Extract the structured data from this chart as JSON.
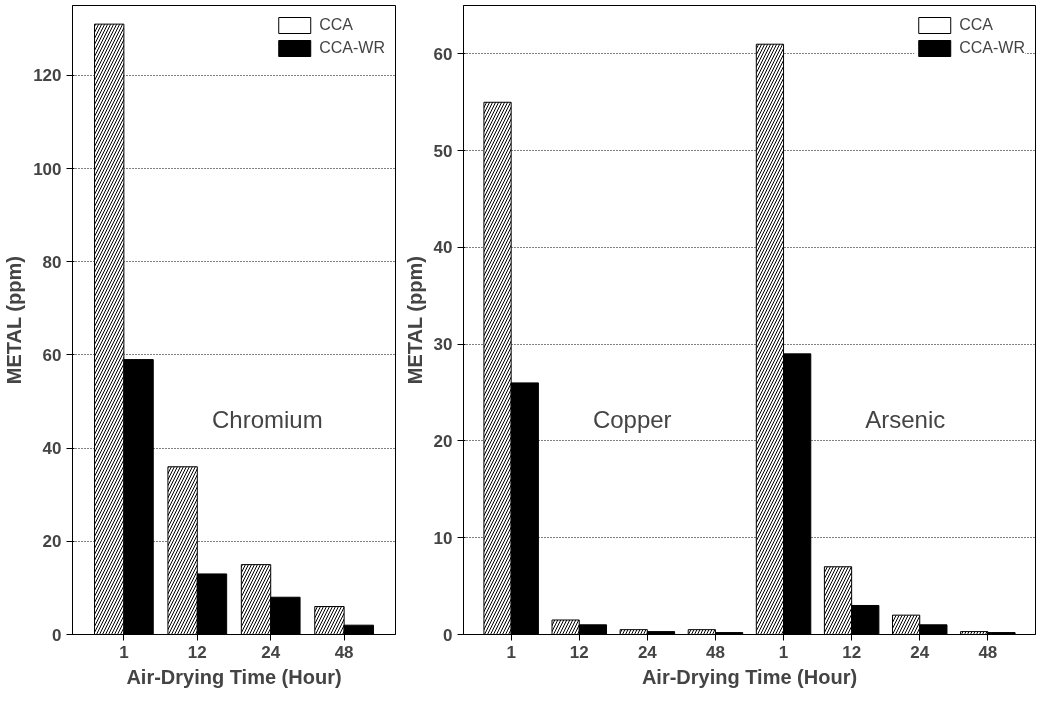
{
  "chart_data": [
    {
      "type": "bar",
      "xlabel": "Air-Drying Time (Hour)",
      "ylabel": "METAL (ppm)",
      "categories": [
        "1",
        "12",
        "24",
        "48"
      ],
      "series": [
        {
          "name": "CCA",
          "color": "#ffffff",
          "values": [
            131,
            36,
            15,
            6
          ]
        },
        {
          "name": "CCA-WR",
          "color": "#000000",
          "values": [
            59,
            13,
            8,
            2
          ]
        }
      ],
      "ylim": [
        0,
        135
      ],
      "yticks": [
        0,
        20,
        40,
        60,
        80,
        100,
        120
      ],
      "grid": "y",
      "legend": "top right",
      "annotations": [
        "Chromium"
      ]
    },
    {
      "type": "bar",
      "xlabel": "Air-Drying Time (Hour)",
      "ylabel": "METAL (ppm)",
      "categories": [
        "1",
        "12",
        "24",
        "48",
        "1",
        "12",
        "24",
        "48"
      ],
      "series": [
        {
          "name": "CCA",
          "color": "#ffffff",
          "values": [
            55,
            1.5,
            0.5,
            0.5,
            61,
            7,
            2,
            0.3
          ]
        },
        {
          "name": "CCA-WR",
          "color": "#000000",
          "values": [
            26,
            1,
            0.3,
            0.2,
            29,
            3,
            1,
            0.2
          ]
        }
      ],
      "ylim": [
        0,
        65
      ],
      "yticks": [
        0,
        10,
        20,
        30,
        40,
        50,
        60
      ],
      "grid": "y",
      "legend": "top right",
      "annotations": [
        "Copper",
        "Arsenic"
      ]
    }
  ]
}
